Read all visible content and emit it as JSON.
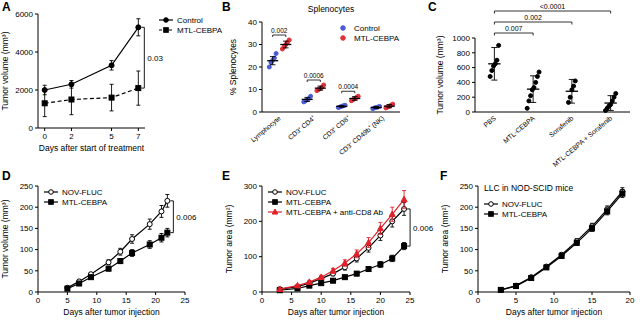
{
  "chart_data": [
    {
      "type": "line",
      "panel_label": "A",
      "x_label": "Days after start of treatment",
      "y_label": "Tumor volume (mm³)",
      "x": [
        0,
        2,
        5,
        7
      ],
      "xlim": [
        -0.5,
        7.5
      ],
      "xticks": [
        0,
        2,
        5,
        7
      ],
      "ylim": [
        0,
        6000
      ],
      "yticks": [
        0,
        2000,
        4000,
        6000
      ],
      "legend": "right",
      "series": [
        {
          "name": "Control",
          "color": "#000000",
          "marker": "circle",
          "line_style": "solid",
          "values": [
            2000,
            2300,
            3300,
            5300
          ],
          "errors": [
            250,
            200,
            250,
            450
          ]
        },
        {
          "name": "MTL-CEBPA",
          "color": "#000000",
          "marker": "square",
          "line_style": "dashed",
          "values": [
            1300,
            1500,
            1600,
            2100
          ],
          "errors": [
            700,
            800,
            700,
            900
          ]
        }
      ],
      "annotation": {
        "text": "0.03",
        "series": [
          0,
          1
        ]
      }
    },
    {
      "type": "dot",
      "panel_label": "B",
      "title": "Splenocytes",
      "y_label": "% Splenocytes",
      "categories": [
        "Lymphocyte",
        "CD3⁺ CD4⁺",
        "CD3⁺ CD8⁺",
        "CD3⁻ CD49b⁺ (NK)"
      ],
      "ylim": [
        0,
        40
      ],
      "yticks": [
        0,
        10,
        20,
        30,
        40
      ],
      "legend": "top-right",
      "series": [
        {
          "name": "Control",
          "color": "#4a5bd4",
          "marker": "circle",
          "values": [
            22.8,
            5.6,
            2.5,
            2.0
          ],
          "errors": [
            1.8,
            0.9,
            0.4,
            0.4
          ],
          "points": [
            [
              20,
              22,
              23,
              24,
              26
            ],
            [
              4.5,
              5,
              5.5,
              6,
              7
            ],
            [
              2,
              2.2,
              2.5,
              2.8,
              3
            ],
            [
              1.5,
              1.8,
              2,
              2.2,
              2.5
            ]
          ]
        },
        {
          "name": "MTL-CEBPA",
          "color": "#e03038",
          "marker": "circle",
          "values": [
            30.0,
            10.6,
            6.0,
            2.6
          ],
          "errors": [
            1.5,
            0.9,
            0.8,
            0.7
          ],
          "points": [
            [
              28,
              29,
              30,
              31,
              32
            ],
            [
              9.5,
              10,
              10.5,
              11,
              12
            ],
            [
              5,
              5.5,
              6,
              6.5,
              7
            ],
            [
              1.8,
              2.2,
              2.5,
              3,
              3.5
            ]
          ]
        }
      ],
      "p_values": [
        "0.002",
        "0.0006",
        "0.0004",
        null
      ]
    },
    {
      "type": "dot",
      "panel_label": "C",
      "y_label": "Tumor volume (mm³)",
      "categories": [
        "PBS",
        "MTL-CEBPA",
        "Sorafenib",
        "MTL-CEBPA + Sorafenib"
      ],
      "ylim": [
        0,
        1000
      ],
      "yticks": [
        0,
        200,
        400,
        600,
        800,
        1000
      ],
      "series": [
        {
          "color": "#000000",
          "marker": "circle",
          "values": [
            651,
            309,
            280,
            121
          ],
          "errors": [
            220,
            180,
            160,
            100
          ],
          "points": [
            [
              480,
              560,
              620,
              650,
              700,
              900
            ],
            [
              50,
              150,
              220,
              300,
              330,
              400,
              480,
              540
            ],
            [
              130,
              200,
              300,
              350,
              420
            ],
            [
              20,
              50,
              80,
              100,
              150,
              200,
              250
            ]
          ]
        }
      ],
      "comparisons": [
        {
          "from": 0,
          "to": 1,
          "label": "0.007"
        },
        {
          "from": 0,
          "to": 2,
          "label": "0.002"
        },
        {
          "from": 0,
          "to": 3,
          "label": "<0.0001"
        }
      ]
    },
    {
      "type": "line",
      "panel_label": "D",
      "x_label": "Days after tumor injection",
      "y_label": "Tumor volume (mm³)",
      "x": [
        5,
        7,
        9,
        12,
        14,
        16,
        19,
        21,
        22
      ],
      "xlim": [
        0,
        25
      ],
      "xticks": [
        0,
        5,
        10,
        15,
        20,
        25
      ],
      "ylim": [
        0,
        250
      ],
      "yticks": [
        0,
        50,
        100,
        150,
        200,
        250
      ],
      "legend": "top-left",
      "series": [
        {
          "name": "NOV-FLUC",
          "color": "#000000",
          "marker": "open-circle",
          "line_style": "solid",
          "values": [
            10,
            25,
            42,
            70,
            95,
            125,
            160,
            190,
            215
          ],
          "errors": [
            2,
            3,
            4,
            6,
            8,
            10,
            12,
            14,
            15
          ]
        },
        {
          "name": "MTL-CEBPA",
          "color": "#000000",
          "marker": "square",
          "line_style": "solid",
          "values": [
            8,
            20,
            35,
            55,
            73,
            92,
            112,
            128,
            140
          ],
          "errors": [
            2,
            3,
            4,
            5,
            6,
            8,
            9,
            10,
            10
          ]
        }
      ],
      "annotation": {
        "text": "0.006",
        "series": [
          0,
          1
        ]
      }
    },
    {
      "type": "line",
      "panel_label": "E",
      "x_label": "Days after tumor injection",
      "y_label": "Tumor area (mm²)",
      "x": [
        3,
        6,
        8,
        10,
        12,
        14,
        16,
        18,
        20,
        22,
        24
      ],
      "xlim": [
        0,
        25
      ],
      "xticks": [
        0,
        5,
        10,
        15,
        20,
        25
      ],
      "ylim": [
        0,
        300
      ],
      "yticks": [
        0,
        100,
        200,
        300
      ],
      "legend": "top-left",
      "series": [
        {
          "name": "NOV-FLUC",
          "color": "#000000",
          "marker": "open-circle",
          "line_style": "solid",
          "values": [
            8,
            15,
            25,
            38,
            52,
            70,
            95,
            125,
            160,
            200,
            235
          ],
          "errors": [
            2,
            3,
            4,
            5,
            6,
            8,
            10,
            12,
            14,
            16,
            18
          ]
        },
        {
          "name": "MTL-CEBPA",
          "color": "#000000",
          "marker": "square",
          "line_style": "solid",
          "values": [
            5,
            10,
            18,
            25,
            32,
            42,
            52,
            65,
            78,
            95,
            130
          ],
          "errors": [
            1,
            2,
            3,
            3,
            4,
            5,
            6,
            7,
            8,
            9,
            10
          ]
        },
        {
          "name": "MTL-CEBPA + anti-CD8 Ab",
          "color": "#e0202a",
          "marker": "triangle",
          "line_style": "solid",
          "values": [
            8,
            18,
            28,
            42,
            60,
            82,
            108,
            140,
            180,
            220,
            262
          ],
          "errors": [
            2,
            3,
            4,
            5,
            7,
            9,
            11,
            14,
            17,
            20,
            25
          ]
        }
      ],
      "annotation": {
        "text": "0.006",
        "series": [
          0,
          1
        ]
      }
    },
    {
      "type": "line",
      "panel_label": "F",
      "title": "LLC in NOD-SCID mice",
      "x_label": "Days after tumor injection",
      "y_label": "Tumor area (mm²)",
      "x": [
        3,
        5,
        7,
        9,
        11,
        13,
        15,
        17,
        19
      ],
      "xlim": [
        0,
        20
      ],
      "xticks": [
        0,
        5,
        10,
        15,
        20
      ],
      "ylim": [
        0,
        250
      ],
      "yticks": [
        0,
        50,
        100,
        150,
        200,
        250
      ],
      "legend": "top-left",
      "series": [
        {
          "name": "NOV-FLUC",
          "color": "#000000",
          "marker": "open-circle",
          "line_style": "solid",
          "values": [
            5,
            15,
            35,
            60,
            88,
            120,
            155,
            195,
            237
          ],
          "errors": [
            1,
            2,
            3,
            4,
            5,
            6,
            7,
            8,
            9
          ]
        },
        {
          "name": "MTL-CEBPA",
          "color": "#000000",
          "marker": "square",
          "line_style": "solid",
          "values": [
            5,
            14,
            33,
            58,
            85,
            116,
            150,
            190,
            232
          ],
          "errors": [
            1,
            2,
            3,
            4,
            5,
            6,
            7,
            8,
            9
          ]
        }
      ]
    }
  ]
}
